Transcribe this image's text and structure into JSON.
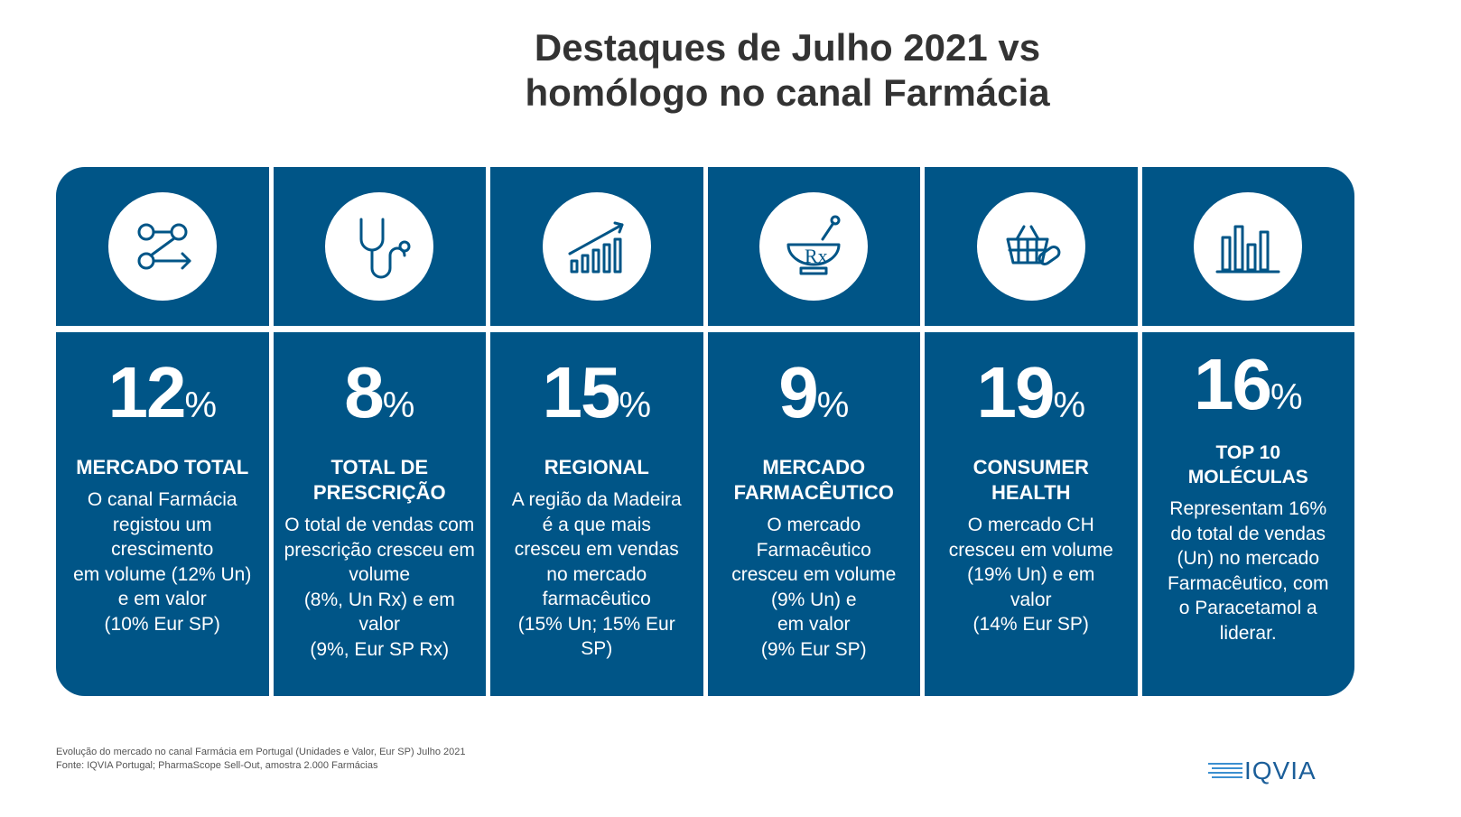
{
  "title": [
    "Destaques de Julho 2021 vs",
    "homólogo no canal Farmácia"
  ],
  "cards": [
    {
      "value": "12",
      "unit": "%",
      "heading": [
        "MERCADO TOTAL"
      ],
      "text": [
        "O canal Farmácia",
        "registou um",
        "crescimento",
        "em volume (12% Un)",
        "e em valor",
        "(10% Eur SP)"
      ]
    },
    {
      "value": "8",
      "unit": "%",
      "heading": [
        "TOTAL DE",
        "PRESCRIÇÃO"
      ],
      "text": [
        "O total de vendas com",
        "prescrição cresceu em",
        "volume",
        "(8%, Un Rx) e em",
        "valor",
        "(9%, Eur SP Rx)"
      ]
    },
    {
      "value": "15",
      "unit": "%",
      "heading": [
        "REGIONAL"
      ],
      "text": [
        "A região da Madeira",
        "é a que mais",
        "cresceu em vendas",
        "no mercado",
        "farmacêutico",
        "(15% Un; 15% Eur",
        "SP)"
      ]
    },
    {
      "value": "9",
      "unit": "%",
      "heading": [
        "MERCADO",
        "FARMACÊUTICO"
      ],
      "text": [
        "O mercado",
        "Farmacêutico",
        "cresceu em volume",
        "(9% Un) e",
        "em valor",
        "(9% Eur SP)"
      ]
    },
    {
      "value": "19",
      "unit": "%",
      "heading": [
        "CONSUMER",
        "HEALTH"
      ],
      "text": [
        "O mercado CH",
        "cresceu em volume",
        "(19% Un) e em",
        "valor",
        "(14% Eur SP)"
      ]
    },
    {
      "value": "16",
      "unit": "%",
      "heading": [
        "TOP 10",
        "MOLÉCULAS"
      ],
      "text": [
        "Representam 16%",
        "do total de vendas",
        "(Un) no mercado",
        "Farmacêutico, com",
        "o Paracetamol a",
        "liderar."
      ]
    }
  ],
  "footnote": [
    "Evolução do mercado no canal Farmácia em Portugal (Unidades e Valor, Eur SP) Julho 2021",
    "Fonte: IQVIA Portugal; PharmaScope Sell-Out, amostra 2.000 Farmácias"
  ],
  "logo": "IQVIA"
}
